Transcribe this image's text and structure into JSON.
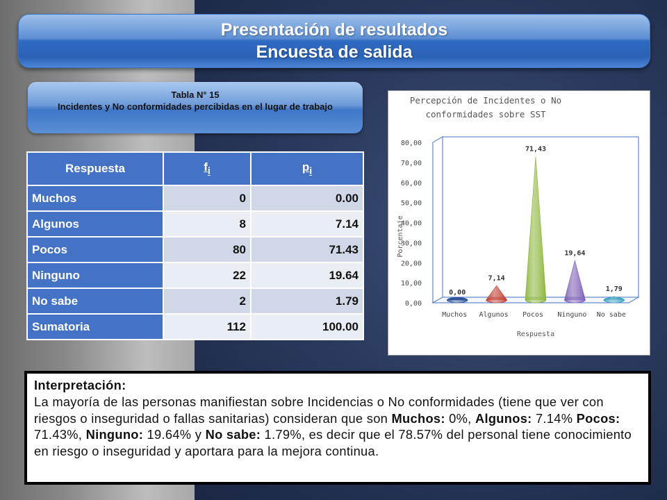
{
  "header": {
    "line1": "Presentación de resultados",
    "line2": "Encuesta de salida"
  },
  "caption": {
    "line1": "Tabla N° 15",
    "line2": "Incidentes y No conformidades percibidas en el lugar de trabajo"
  },
  "table": {
    "headers": [
      "Respuesta",
      "f",
      "i",
      "p",
      "i"
    ],
    "rows": [
      {
        "label": "Muchos",
        "f": "0",
        "p": "0.00"
      },
      {
        "label": "Algunos",
        "f": "8",
        "p": "7.14"
      },
      {
        "label": "Pocos",
        "f": "80",
        "p": "71.43"
      },
      {
        "label": "Ninguno",
        "f": "22",
        "p": "19.64"
      },
      {
        "label": "No sabe",
        "f": "2",
        "p": "1.79"
      },
      {
        "label": "Sumatoria",
        "f": "112",
        "p": "100.00"
      }
    ]
  },
  "chart_data": {
    "type": "bar",
    "title": "Percepción de Incidentes o No conformidades sobre SST",
    "xlabel": "Respuesta",
    "ylabel": "Porcentaje",
    "categories": [
      "Muchos",
      "Algunos",
      "Pocos",
      "Ninguno",
      "No sabe"
    ],
    "values": [
      0.0,
      7.14,
      71.43,
      19.64,
      1.79
    ],
    "data_labels": [
      "0,00",
      "7,14",
      "71,43",
      "19,64",
      "1,79"
    ],
    "ylim": [
      0,
      80
    ],
    "yticks": [
      "0,00",
      "10,00",
      "20,00",
      "30,00",
      "40,00",
      "50,00",
      "60,00",
      "70,00",
      "80,00"
    ],
    "colors": [
      "#2f5597",
      "#c0392b",
      "#8ab43a",
      "#7b5bb5",
      "#3aa0c0"
    ],
    "shape": "cone"
  },
  "interpretation": {
    "heading": "Interpretación:",
    "p1": "La mayoría de las personas manifiestan sobre Incidencias o No conformidades (tiene que ver con riesgos o inseguridad o fallas sanitarias) consideran que son ",
    "muchos_label": "Muchos:",
    "muchos_val": " 0%, ",
    "algunos_label": "Algunos:",
    "algunos_val": " 7.14% ",
    "pocos_label": "Pocos:",
    "pocos_val": " 71.43%, ",
    "ninguno_label": "Ninguno:",
    "ninguno_val": " 19.64% y ",
    "nosabe_label": "No sabe:",
    "nosabe_val": " 1.79%, es decir que el 78.57% del personal tiene conocimiento en riesgo o inseguridad y aportara para la mejora continua."
  }
}
